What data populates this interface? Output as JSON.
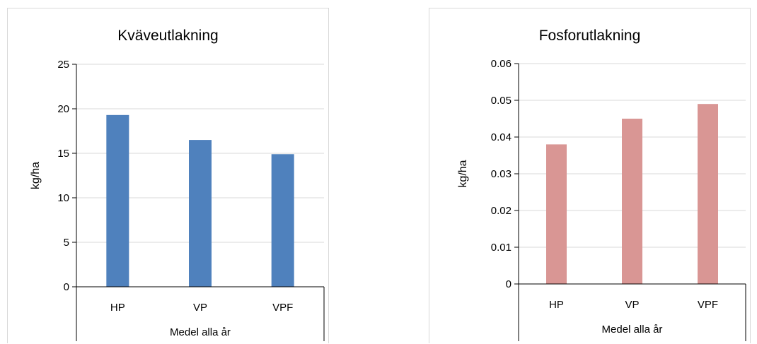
{
  "chart_data": [
    {
      "type": "bar",
      "title": "Kväveutlakning",
      "ylabel": "kg/ha",
      "xlabel": "",
      "group_label": "Medel alla år",
      "categories": [
        "HP",
        "VP",
        "VPF"
      ],
      "values": [
        19.3,
        16.5,
        14.9
      ],
      "ylim": [
        0,
        25
      ],
      "yticks": [
        0,
        5,
        10,
        15,
        20,
        25
      ],
      "ytick_labels": [
        "0",
        "5",
        "10",
        "15",
        "20",
        "25"
      ],
      "color": "#4f81bd",
      "grid": true,
      "legend": "none"
    },
    {
      "type": "bar",
      "title": "Fosforutlakning",
      "ylabel": "kg/ha",
      "xlabel": "",
      "group_label": "Medel alla år",
      "categories": [
        "HP",
        "VP",
        "VPF"
      ],
      "values": [
        0.038,
        0.045,
        0.049
      ],
      "ylim": [
        0,
        0.06
      ],
      "yticks": [
        0,
        0.01,
        0.02,
        0.03,
        0.04,
        0.05,
        0.06
      ],
      "ytick_labels": [
        "0",
        "0.01",
        "0.02",
        "0.03",
        "0.04",
        "0.05",
        "0.06"
      ],
      "color": "#d99694",
      "grid": true,
      "legend": "none"
    }
  ]
}
